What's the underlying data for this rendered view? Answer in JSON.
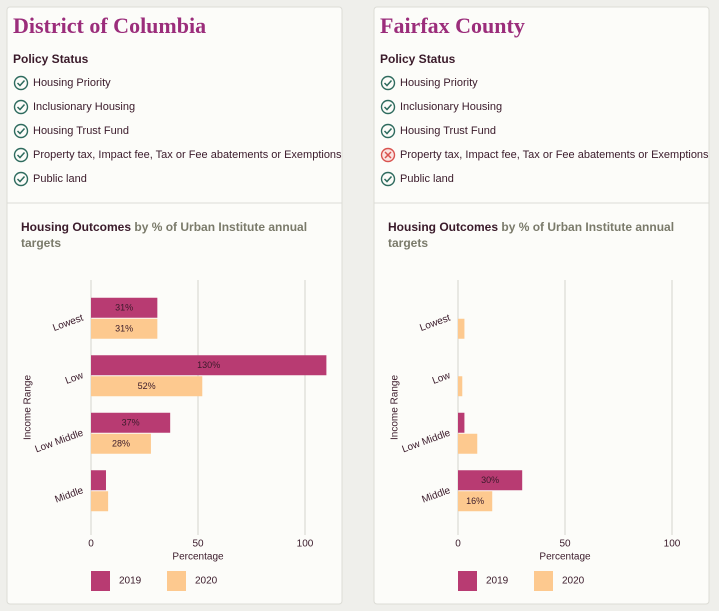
{
  "panels": [
    {
      "title": "District of Columbia",
      "policy_heading": "Policy Status",
      "policies": [
        {
          "label": "Housing Priority",
          "status": "yes"
        },
        {
          "label": "Inclusionary Housing",
          "status": "yes"
        },
        {
          "label": "Housing Trust Fund",
          "status": "yes"
        },
        {
          "label": "Property tax, Impact fee, Tax or Fee abatements or Exemptions",
          "status": "yes"
        },
        {
          "label": "Public land",
          "status": "yes"
        }
      ]
    },
    {
      "title": "Fairfax County",
      "policy_heading": "Policy Status",
      "policies": [
        {
          "label": "Housing Priority",
          "status": "yes"
        },
        {
          "label": "Inclusionary Housing",
          "status": "yes"
        },
        {
          "label": "Housing Trust Fund",
          "status": "yes"
        },
        {
          "label": "Property tax, Impact fee, Tax or Fee abatements or Exemptions",
          "status": "no"
        },
        {
          "label": "Public land",
          "status": "yes"
        }
      ]
    }
  ],
  "chart_data": [
    {
      "type": "hbar",
      "title": "Housing Outcomes",
      "subtitle": "by % of Urban Institute annual targets",
      "y_label": "Income Range",
      "x_label": "Percentage",
      "categories": [
        "Lowest",
        "Low",
        "Low Middle",
        "Middle"
      ],
      "series": [
        {
          "name": "2019",
          "color": "#b83b72",
          "values": [
            31,
            130,
            37,
            7
          ],
          "value_labels": [
            "31%",
            "130%",
            "37%",
            null
          ]
        },
        {
          "name": "2020",
          "color": "#fdc98f",
          "values": [
            31,
            52,
            28,
            8
          ],
          "value_labels": [
            "31%",
            "52%",
            "28%",
            null
          ]
        }
      ],
      "xlim": [
        0,
        110
      ],
      "xticks": [
        0,
        50,
        100
      ],
      "grid": true
    },
    {
      "type": "hbar",
      "title": "Housing Outcomes",
      "subtitle": "by % of Urban Institute annual targets",
      "y_label": "Income Range",
      "x_label": "Percentage",
      "categories": [
        "Lowest",
        "Low",
        "Low Middle",
        "Middle"
      ],
      "series": [
        {
          "name": "2019",
          "color": "#b83b72",
          "values": [
            0,
            0,
            3,
            30
          ],
          "value_labels": [
            null,
            null,
            null,
            "30%"
          ]
        },
        {
          "name": "2020",
          "color": "#fdc98f",
          "values": [
            3,
            2,
            9,
            16
          ],
          "value_labels": [
            null,
            null,
            null,
            "16%"
          ]
        }
      ],
      "xlim": [
        0,
        110
      ],
      "xticks": [
        0,
        50,
        100
      ],
      "grid": true
    }
  ]
}
